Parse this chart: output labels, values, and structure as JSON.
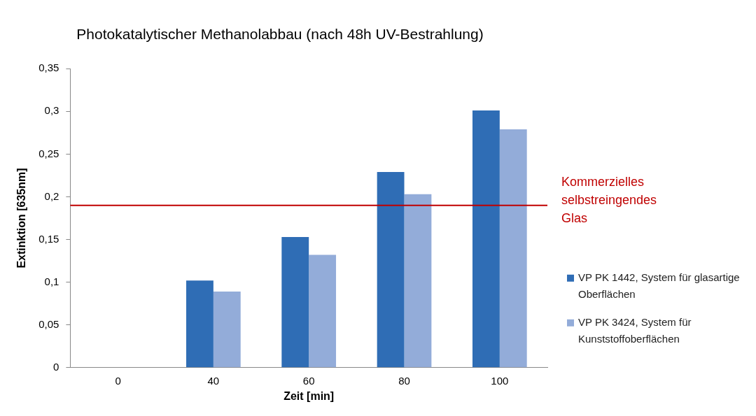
{
  "chart_data": {
    "type": "bar",
    "title": "Photokatalytischer Methanolabbau (nach 48h UV-Bestrahlung)",
    "xlabel": "Zeit [min]",
    "ylabel": "Extinktion [635nm]",
    "categories": [
      "0",
      "40",
      "60",
      "80",
      "100"
    ],
    "series": [
      {
        "name": "VP PK 1442, System für glasartige Oberflächen",
        "color": "#2f6db5",
        "values": [
          0,
          0.102,
          0.153,
          0.229,
          0.301
        ]
      },
      {
        "name": "VP PK 3424, System für Kunststoffoberflächen",
        "color": "#93acd9",
        "values": [
          0,
          0.089,
          0.132,
          0.203,
          0.279
        ]
      }
    ],
    "ylim": [
      0,
      0.35
    ],
    "yticks": [
      0,
      {
        "value": 0.05,
        "label": "0,05"
      },
      {
        "value": 0.1,
        "label": "0,1"
      },
      {
        "value": 0.15,
        "label": "0,15"
      },
      {
        "value": 0.2,
        "label": "0,2"
      },
      {
        "value": 0.25,
        "label": "0,25"
      },
      {
        "value": 0.3,
        "label": "0,3"
      },
      {
        "value": 0.35,
        "label": "0,35"
      }
    ],
    "ref_lines": [
      {
        "axis": "y",
        "value": 0.19,
        "label": "Kommerzielles selbstreingendes Glas",
        "color": "#c00000"
      }
    ],
    "legend": "right",
    "grid": false
  }
}
